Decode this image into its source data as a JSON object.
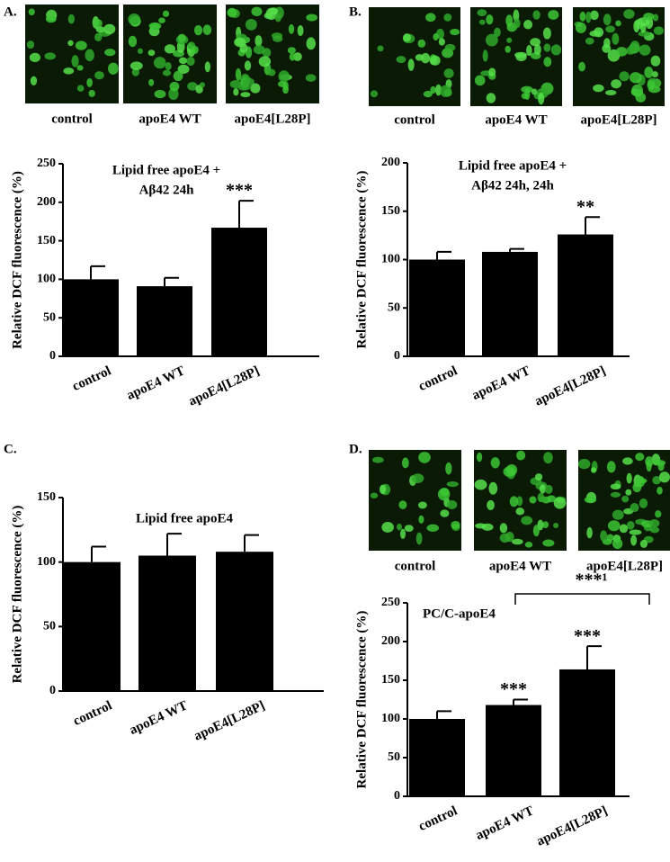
{
  "chart_data": [
    {
      "type": "bar",
      "panel": "A.",
      "image_captions": [
        "control",
        "apoE4 WT",
        "apoE4[L28P]"
      ],
      "title": [
        "Lipid free apoE4 +",
        "Aβ42 24h"
      ],
      "y_label": "Relative DCF fluorescence (%)",
      "categories": [
        "control",
        "apoE4 WT",
        "apoE4[L28P]"
      ],
      "values": [
        100,
        91,
        167
      ],
      "errors": [
        17,
        11,
        35
      ],
      "color": "#000000",
      "ylim": [
        0,
        250
      ],
      "yticks": [
        0,
        50,
        100,
        150,
        200,
        250
      ],
      "annotations": [
        "***"
      ]
    },
    {
      "type": "bar",
      "panel": "B.",
      "image_captions": [
        "control",
        "apoE4 WT",
        "apoE4[L28P]"
      ],
      "title": [
        "Lipid free apoE4 +",
        "Aβ42 24h, 24h"
      ],
      "y_label": "Relative DCF fluorescence (%)",
      "categories": [
        "control",
        "apoE4 WT",
        "apoE4[L28P]"
      ],
      "values": [
        100,
        108,
        126
      ],
      "errors": [
        8,
        3,
        18
      ],
      "color": "#000000",
      "ylim": [
        0,
        200
      ],
      "yticks": [
        0,
        50,
        100,
        150,
        200
      ],
      "annotations": [
        "**"
      ]
    },
    {
      "type": "bar",
      "panel": "C.",
      "title": [
        "Lipid free apoE4"
      ],
      "y_label": "Relative DCF fluorescence (%)",
      "categories": [
        "control",
        "apoE4 WT",
        "apoE4[L28P]"
      ],
      "values": [
        100,
        105,
        108
      ],
      "errors": [
        12,
        17,
        13
      ],
      "color": "#000000",
      "ylim": [
        0,
        150
      ],
      "yticks": [
        0,
        50,
        100,
        150
      ]
    },
    {
      "type": "bar",
      "panel": "D.",
      "image_captions": [
        "control",
        "apoE4 WT",
        "apoE4[L28P]"
      ],
      "title": [
        "PC/C-apoE4"
      ],
      "y_label": "Relative DCF fluorescence (%)",
      "categories": [
        "control",
        "apoE4 WT",
        "apoE4[L28P]"
      ],
      "values": [
        100,
        118,
        164
      ],
      "errors": [
        10,
        7,
        30
      ],
      "color": "#000000",
      "ylim": [
        0,
        250
      ],
      "yticks": [
        0,
        50,
        100,
        150,
        200,
        250
      ],
      "annotations": [
        "***",
        "***",
        "***¹"
      ]
    }
  ]
}
